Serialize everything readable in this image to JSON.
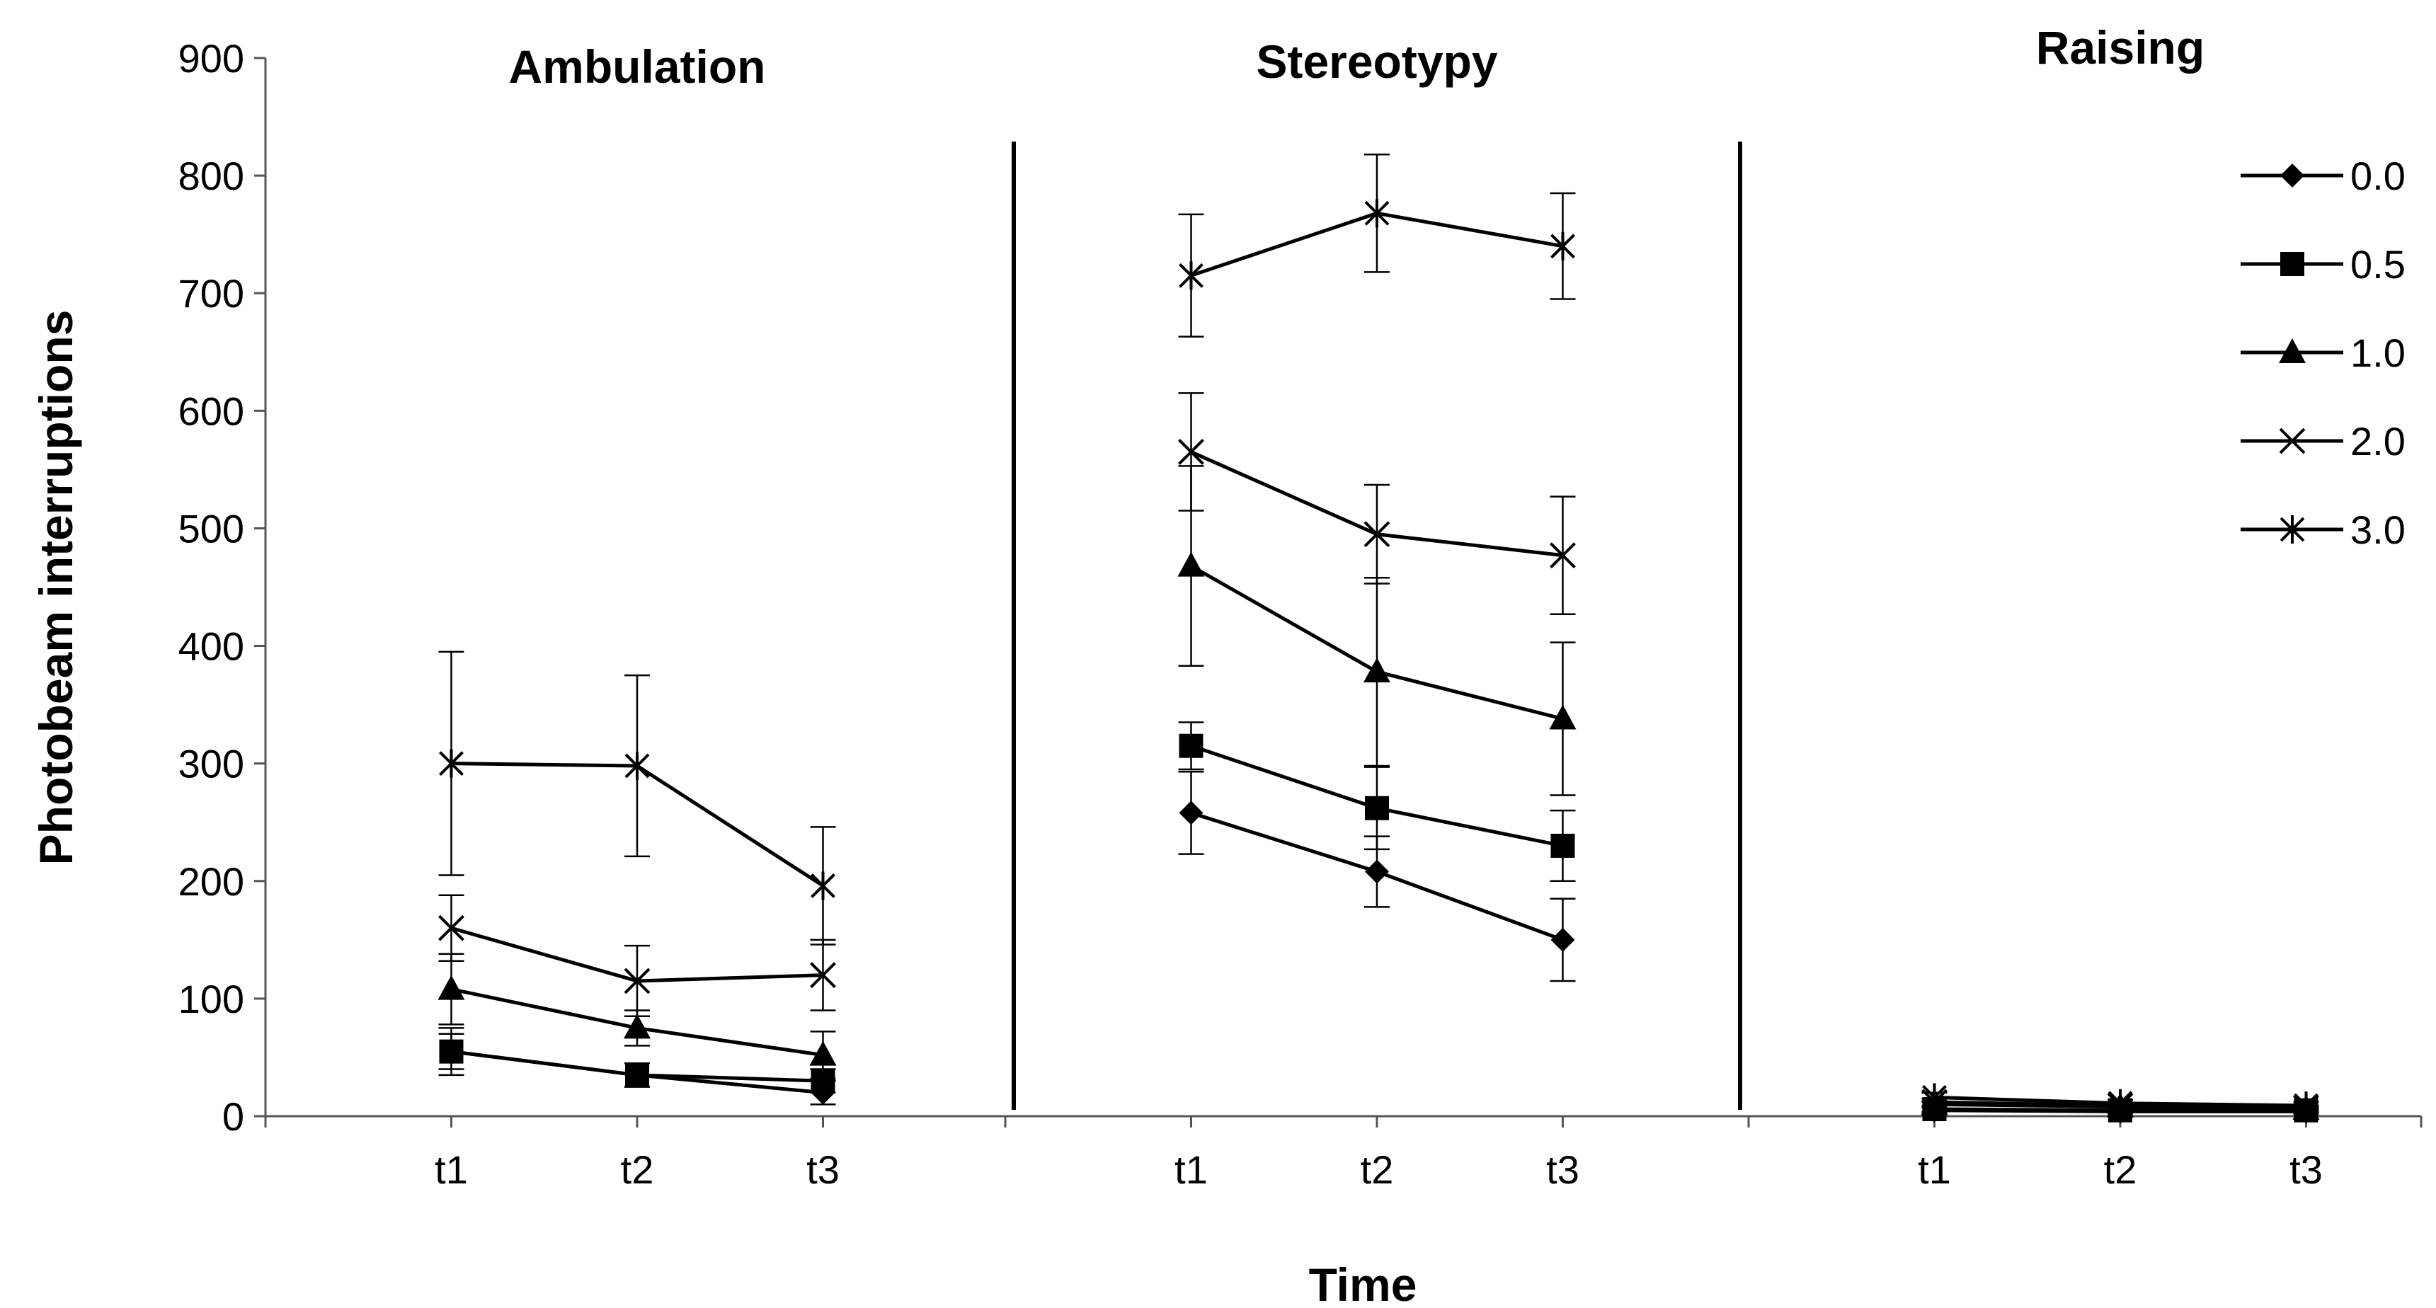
{
  "chart_data": {
    "type": "line",
    "ylabel": "Photobeam interruptions",
    "xlabel": "Time",
    "ylim": [
      0,
      900
    ],
    "yticks": [
      "0",
      "100",
      "200",
      "300",
      "400",
      "500",
      "600",
      "700",
      "800",
      "900"
    ],
    "error_bars": true,
    "legend_position": "top-right",
    "panels": [
      {
        "title": "Ambulation",
        "categories": [
          "t1",
          "t2",
          "t3"
        ],
        "series": [
          {
            "name": "0.0",
            "marker": "diamond",
            "values": [
              55,
              35,
              20
            ],
            "errors": [
              20,
              10,
              10
            ]
          },
          {
            "name": "0.5",
            "marker": "square",
            "values": [
              55,
              35,
              30
            ],
            "errors": [
              15,
              10,
              10
            ]
          },
          {
            "name": "1.0",
            "marker": "triangle",
            "values": [
              108,
              75,
              52
            ],
            "errors": [
              30,
              15,
              20
            ]
          },
          {
            "name": "2.0",
            "marker": "x",
            "values": [
              160,
              115,
              120
            ],
            "errors": [
              28,
              30,
              30
            ]
          },
          {
            "name": "3.0",
            "marker": "star",
            "values": [
              300,
              298,
              196
            ],
            "errors": [
              95,
              77,
              50
            ]
          }
        ]
      },
      {
        "title": "Stereotypy",
        "categories": [
          "t1",
          "t2",
          "t3"
        ],
        "series": [
          {
            "name": "0.0",
            "marker": "diamond",
            "values": [
              258,
              208,
              150
            ],
            "errors": [
              35,
              30,
              35
            ]
          },
          {
            "name": "0.5",
            "marker": "square",
            "values": [
              315,
              262,
              230
            ],
            "errors": [
              20,
              35,
              30
            ]
          },
          {
            "name": "1.0",
            "marker": "triangle",
            "values": [
              468,
              378,
              338
            ],
            "errors": [
              85,
              80,
              65
            ]
          },
          {
            "name": "2.0",
            "marker": "x",
            "values": [
              565,
              495,
              477
            ],
            "errors": [
              50,
              42,
              50
            ]
          },
          {
            "name": "3.0",
            "marker": "star",
            "values": [
              715,
              768,
              740
            ],
            "errors": [
              52,
              50,
              45
            ]
          }
        ]
      },
      {
        "title": "Raising",
        "categories": [
          "t1",
          "t2",
          "t3"
        ],
        "series": [
          {
            "name": "0.0",
            "marker": "diamond",
            "values": [
              5,
              4,
              4
            ],
            "errors": [
              2,
              2,
              2
            ]
          },
          {
            "name": "0.5",
            "marker": "square",
            "values": [
              6,
              5,
              5
            ],
            "errors": [
              2,
              2,
              2
            ]
          },
          {
            "name": "1.0",
            "marker": "triangle",
            "values": [
              10,
              8,
              6
            ],
            "errors": [
              3,
              2,
              2
            ]
          },
          {
            "name": "2.0",
            "marker": "x",
            "values": [
              12,
              9,
              7
            ],
            "errors": [
              3,
              2,
              2
            ]
          },
          {
            "name": "3.0",
            "marker": "star",
            "values": [
              16,
              11,
              9
            ],
            "errors": [
              4,
              3,
              3
            ]
          }
        ]
      }
    ],
    "legend": [
      {
        "name": "0.0",
        "marker": "diamond"
      },
      {
        "name": "0.5",
        "marker": "square"
      },
      {
        "name": "1.0",
        "marker": "triangle"
      },
      {
        "name": "2.0",
        "marker": "x"
      },
      {
        "name": "3.0",
        "marker": "star"
      }
    ]
  }
}
